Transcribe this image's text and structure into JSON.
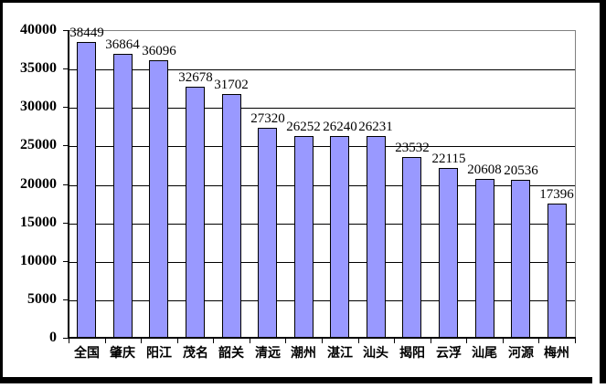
{
  "chart_data": {
    "type": "bar",
    "title": "",
    "xlabel": "",
    "ylabel": "",
    "categories": [
      "全国",
      "肇庆",
      "阳江",
      "茂名",
      "韶关",
      "清远",
      "潮州",
      "湛江",
      "汕头",
      "揭阳",
      "云浮",
      "汕尾",
      "河源",
      "梅州"
    ],
    "values": [
      38449,
      36864,
      36096,
      32678,
      31702,
      27320,
      26252,
      26240,
      26231,
      23532,
      22115,
      20608,
      20536,
      17396
    ],
    "data_labels_shown": true,
    "ylim": [
      0,
      40000
    ],
    "yticks": [
      0,
      5000,
      10000,
      15000,
      20000,
      25000,
      30000,
      35000,
      40000
    ],
    "grid": true,
    "legend_position": "none",
    "colors": {
      "bar_fill": "#9999FF",
      "bar_border": "#000000",
      "gridline": "#000000",
      "plot_border": "#808080",
      "axis": "#000000",
      "background": "#FFFFFF",
      "frame": "#000000",
      "text": "#000000"
    }
  }
}
